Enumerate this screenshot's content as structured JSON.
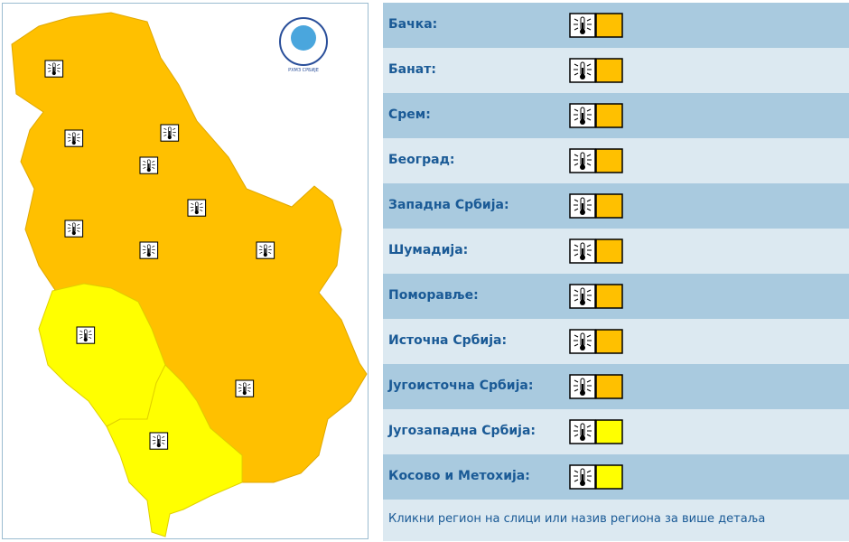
{
  "logo_text": "РХМЗ СРБИЈЕ",
  "regions": [
    {
      "name": "Бачка:",
      "color": "#ffc000"
    },
    {
      "name": "Банат:",
      "color": "#ffc000"
    },
    {
      "name": "Срем:",
      "color": "#ffc000"
    },
    {
      "name": "Београд:",
      "color": "#ffc000"
    },
    {
      "name": "Западна Србија:",
      "color": "#ffc000"
    },
    {
      "name": "Шумадија:",
      "color": "#ffc000"
    },
    {
      "name": "Поморавље:",
      "color": "#ffc000"
    },
    {
      "name": "Источна Србија:",
      "color": "#ffc000"
    },
    {
      "name": "Југоисточна Србија:",
      "color": "#ffc000"
    },
    {
      "name": "Југозападна Србија:",
      "color": "#ffff00"
    },
    {
      "name": "Косово и Метохија:",
      "color": "#ffff00"
    }
  ],
  "footer": "Кликни регион на слици или назив региона за више детаља"
}
